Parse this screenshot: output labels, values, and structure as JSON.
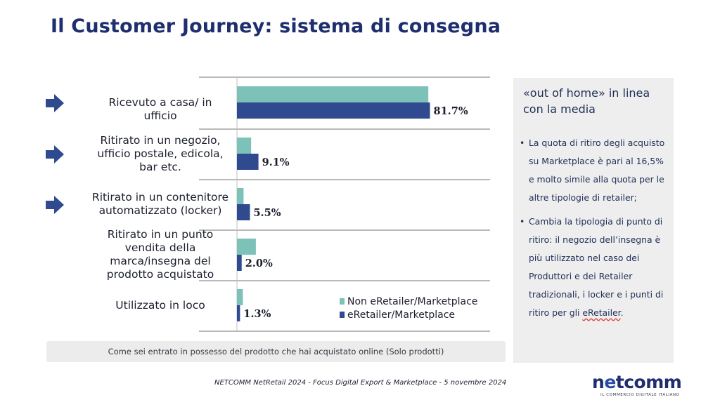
{
  "slide": {
    "title": "Il Customer Journey: sistema di consegna",
    "question": "Come sei entrato in possesso del prodotto che hai acquistato online (Solo prodotti)",
    "footer": "NETCOMM NetRetail 2024 - Focus Digital Export & Marketplace - 5 novembre 2024"
  },
  "colors": {
    "title": "#1e2e6e",
    "non_eretailer": "#7cc2b8",
    "eretailer": "#2f4a8f",
    "arrow": "#2f4a8f"
  },
  "icons": {
    "arrow": "arrow-right-icon"
  },
  "chart_data": {
    "type": "bar",
    "orientation": "horizontal",
    "categories": [
      "Ricevuto a casa/ in ufficio",
      "Ritirato in un negozio, ufficio postale, edicola, bar etc.",
      "Ritirato in un contenitore automatizzato (locker)",
      "Ritirato in un punto vendita della marca/insegna del prodotto acquistato",
      "Utilizzato in loco"
    ],
    "category_lines": [
      [
        "Ricevuto a casa/ in ufficio"
      ],
      [
        "Ritirato in un negozio,",
        "ufficio postale, edicola,",
        "bar etc."
      ],
      [
        "Ritirato in un contenitore",
        "automatizzato (locker)"
      ],
      [
        "Ritirato in un punto",
        "vendita della",
        "marca/insegna del",
        "prodotto acquistato"
      ],
      [
        "Utilizzato in loco"
      ]
    ],
    "highlighted": [
      true,
      true,
      true,
      false,
      false
    ],
    "series": [
      {
        "name": "Non eRetailer/Marketplace",
        "values": [
          81.0,
          6.0,
          2.8,
          8.0,
          2.5
        ]
      },
      {
        "name": "eRetailer/Marketplace",
        "values": [
          81.7,
          9.1,
          5.5,
          2.0,
          1.3
        ]
      }
    ],
    "data_labels": [
      "81.7%",
      "9.1%",
      "5.5%",
      "2.0%",
      "1.3%"
    ],
    "legend_position": "bottom-right",
    "xlim": [
      0,
      100
    ],
    "grid": false
  },
  "side_panel": {
    "title": "«out of home» in linea con la media",
    "bullets": [
      {
        "text": "La quota di ritiro degli acquisto su Marketplace è pari al 16,5% e molto simile alla quota per le altre tipologie di retailer;"
      },
      {
        "text_before": "Cambia la tipologia di punto di ritiro: il negozio dell’insegna è più utilizzato nel caso dei Produttori e dei Retailer tradizionali, i locker e i punti di ritiro per gli ",
        "text_underlined": "eRetailer",
        "text_after": "."
      }
    ]
  },
  "logo": {
    "text_prefix": "n",
    "text_e": "e",
    "text_suffix": "tcomm",
    "tagline": "IL COMMERCIO DIGITALE ITALIANO"
  }
}
